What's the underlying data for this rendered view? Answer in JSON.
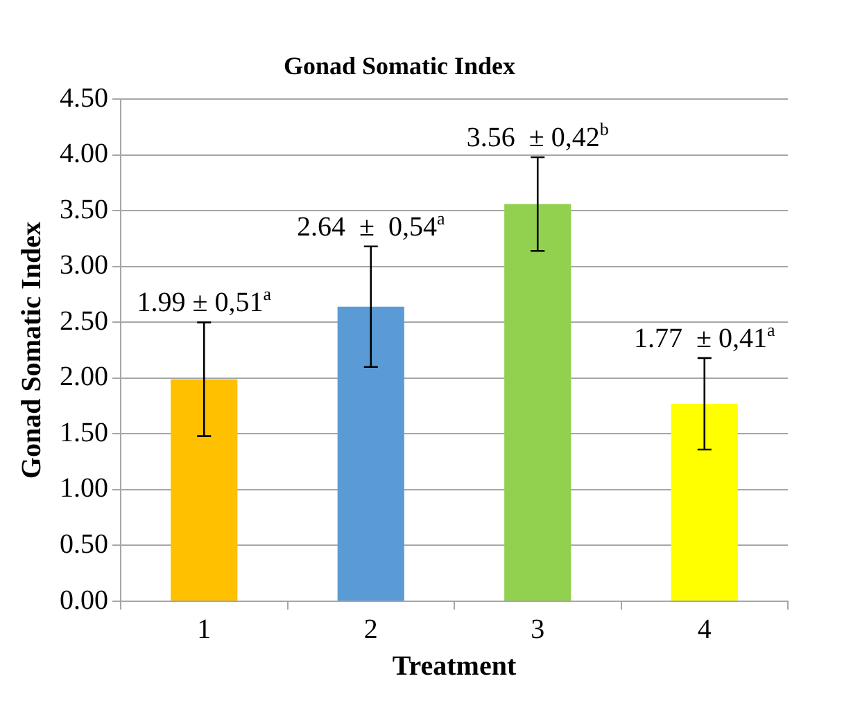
{
  "chart_data": {
    "type": "bar",
    "title": "Gonad Somatic Index",
    "xlabel": "Treatment",
    "ylabel": "Gonad Somatic Index",
    "categories": [
      "1",
      "2",
      "3",
      "4"
    ],
    "values": [
      1.99,
      2.64,
      3.56,
      1.77
    ],
    "colors": [
      "#ffc000",
      "#5b9bd5",
      "#92d050",
      "#ffff00"
    ],
    "errors": [
      0.51,
      0.54,
      0.42,
      0.41
    ],
    "value_labels": [
      "1.99 ± 0,51$^{a}$",
      "2.64  ±  0,54$^{a}$",
      "3.56  ± 0,42$^{b}$",
      "1.77  ± 0,41$^{a}$"
    ],
    "ylim": [
      0,
      4.5
    ],
    "yticks": [
      {
        "value": 0,
        "label": "0.00"
      },
      {
        "value": 0.5,
        "label": "0.50"
      },
      {
        "value": 1,
        "label": "1.00"
      },
      {
        "value": 1.5,
        "label": "1.50"
      },
      {
        "value": 2,
        "label": "2.00"
      },
      {
        "value": 2.5,
        "label": "2.50"
      },
      {
        "value": 3,
        "label": "3.00"
      },
      {
        "value": 3.5,
        "label": "3.50"
      },
      {
        "value": 4,
        "label": "4.00"
      },
      {
        "value": 4.5,
        "label": "4.50"
      }
    ],
    "grid": "y",
    "legend": false
  }
}
